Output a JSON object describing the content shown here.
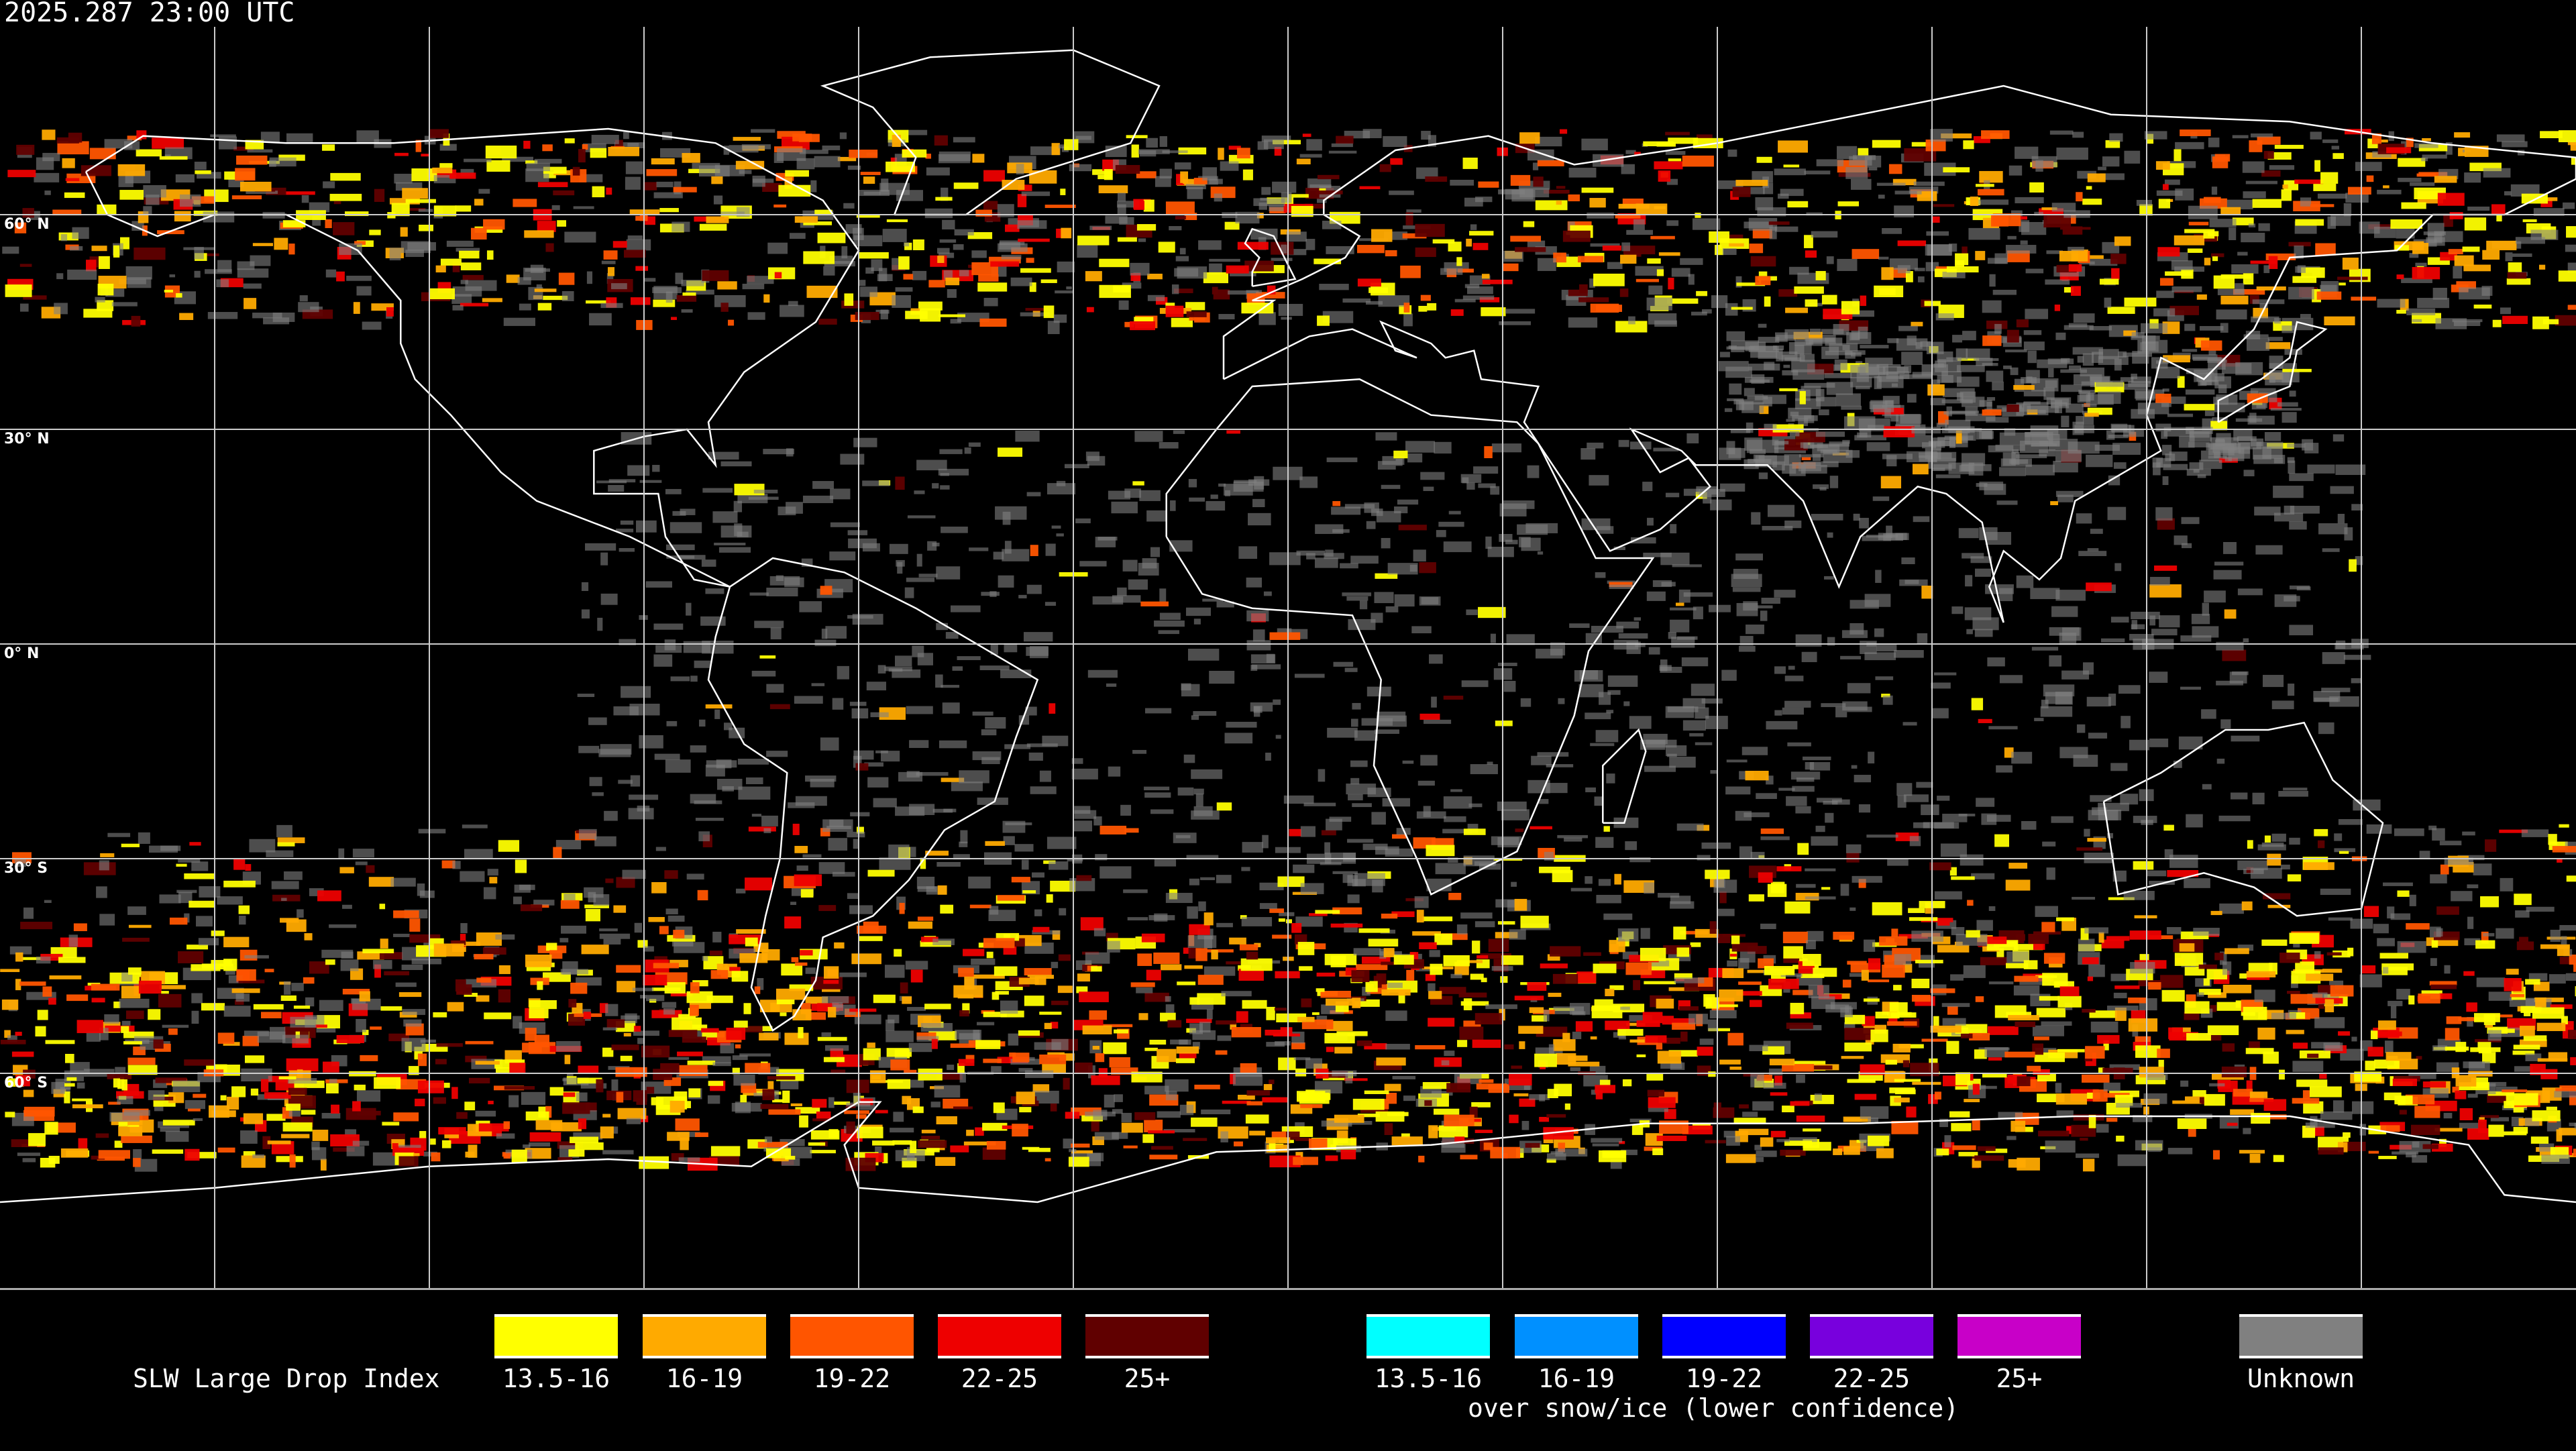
{
  "header": {
    "timestamp": "2025.287 23:00 UTC"
  },
  "map": {
    "projection": "equirectangular",
    "grid_spacing_degrees": 30,
    "latitude_labels": [
      "60° N",
      "30° N",
      "0° N",
      "30° S",
      "60° S"
    ],
    "background_color": "#000000",
    "coastline_color": "#ffffff"
  },
  "legend": {
    "title": "SLW Large Drop Index",
    "primary": [
      {
        "label": "13.5-16",
        "color": "#ffff00"
      },
      {
        "label": "16-19",
        "color": "#ffaa00"
      },
      {
        "label": "19-22",
        "color": "#ff5500"
      },
      {
        "label": "22-25",
        "color": "#ee0000"
      },
      {
        "label": "25+",
        "color": "#600000"
      }
    ],
    "snow_ice": [
      {
        "label": "13.5-16",
        "color": "#00ffff"
      },
      {
        "label": "16-19",
        "color": "#0090ff"
      },
      {
        "label": "19-22",
        "color": "#0000ff"
      },
      {
        "label": "22-25",
        "color": "#7800dd"
      },
      {
        "label": "25+",
        "color": "#c800c8"
      }
    ],
    "snow_ice_note": "over snow/ice (lower confidence)",
    "unknown": {
      "label": "Unknown",
      "color": "#808080"
    }
  }
}
